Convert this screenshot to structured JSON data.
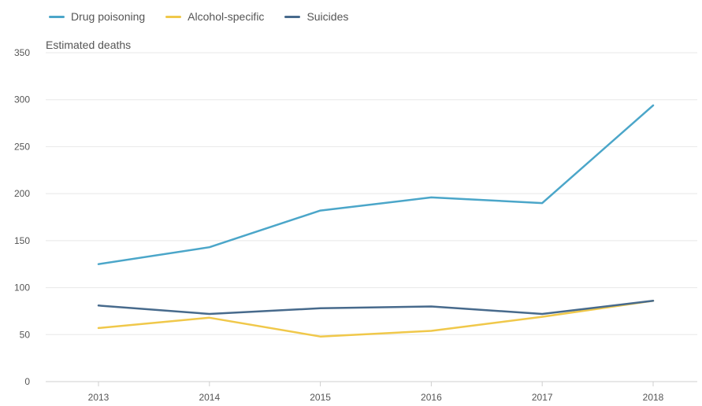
{
  "chart_data": {
    "type": "line",
    "title": "",
    "xlabel": "",
    "ylabel": "Estimated deaths",
    "categories": [
      "2013",
      "2014",
      "2015",
      "2016",
      "2017",
      "2018"
    ],
    "ylim": [
      0,
      350
    ],
    "yticks": [
      0,
      50,
      100,
      150,
      200,
      250,
      300,
      350
    ],
    "grid": true,
    "legend_position": "top-left",
    "series": [
      {
        "name": "Drug poisoning",
        "color": "#4ba6c9",
        "values": [
          125,
          143,
          182,
          196,
          190,
          294
        ]
      },
      {
        "name": "Alcohol-specific",
        "color": "#f0c84a",
        "values": [
          57,
          68,
          48,
          54,
          69,
          86
        ]
      },
      {
        "name": "Suicides",
        "color": "#476a8c",
        "values": [
          81,
          72,
          78,
          80,
          72,
          86
        ]
      }
    ]
  }
}
